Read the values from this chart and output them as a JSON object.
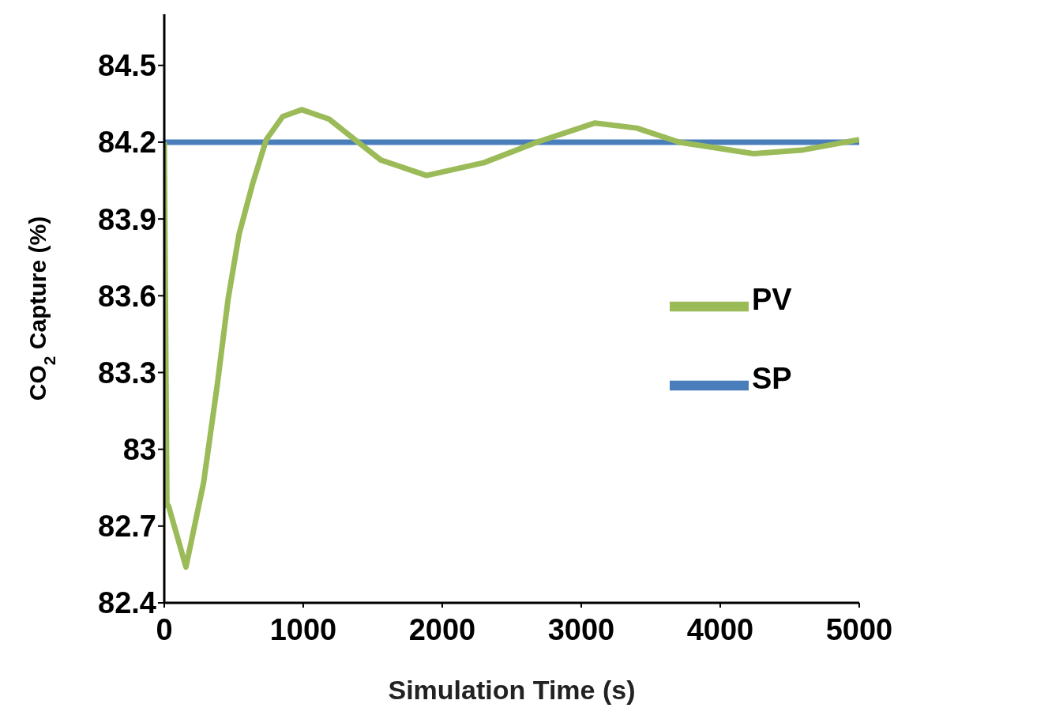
{
  "chart_data": {
    "type": "line",
    "xlabel": "Simulation Time (s)",
    "ylabel": "CO$_{2}$ Capture (%)",
    "xlim": [
      0,
      5000
    ],
    "xticks": [
      0,
      1000,
      2000,
      3000,
      4000,
      5000
    ],
    "ylim": [
      82.4,
      84.7
    ],
    "yticks": [
      82.4,
      82.7,
      83,
      83.3,
      83.6,
      83.9,
      84.2,
      84.5
    ],
    "grid": false,
    "legend": "right",
    "marker": "none",
    "line_style": "solid",
    "series": [
      {
        "name": "SP",
        "color": "#4a7ebb",
        "x": [
          0,
          5000
        ],
        "values": [
          84.2,
          84.2
        ]
      },
      {
        "name": "PV",
        "color": "#9bbb59",
        "x": [
          0,
          19,
          30,
          156,
          283,
          381,
          460,
          538,
          637,
          734,
          852,
          990,
          1186,
          1382,
          1559,
          1887,
          2300,
          2680,
          3099,
          3400,
          3705,
          4240,
          4600,
          5000
        ],
        "values": [
          84.2,
          82.78,
          82.78,
          82.54,
          82.87,
          83.25,
          83.59,
          83.84,
          84.04,
          84.21,
          84.3,
          84.327,
          84.29,
          84.205,
          84.13,
          84.07,
          84.12,
          84.2,
          84.275,
          84.255,
          84.2,
          84.155,
          84.17,
          84.21
        ]
      }
    ]
  }
}
